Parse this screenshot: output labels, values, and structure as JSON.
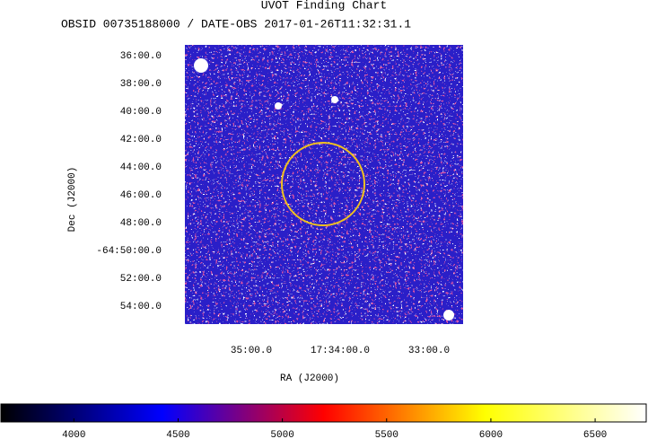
{
  "chart_data": {
    "type": "image",
    "title": "UVOT Finding Chart",
    "subtitle": "OBSID 00735188000 / DATE-OBS 2017-01-26T11:32:31.1",
    "xlabel": "RA (J2000)",
    "ylabel": "Dec (J2000)",
    "xticks": [
      "35:00.0",
      "17:34:00.0",
      "33:00.0"
    ],
    "yticks": [
      "36:00.0",
      "38:00.0",
      "40:00.0",
      "42:00.0",
      "44:00.0",
      "46:00.0",
      "48:00.0",
      "-64:50:00.0",
      "52:00.0",
      "54:00.0"
    ],
    "colorbar": {
      "clim": [
        3650,
        6745
      ],
      "ticks": [
        4000,
        4500,
        5000,
        5500,
        6000,
        6500
      ],
      "colormap": [
        "#000000",
        "#0000ff",
        "#ff0000",
        "#ffff00",
        "#ffffff"
      ]
    }
  }
}
